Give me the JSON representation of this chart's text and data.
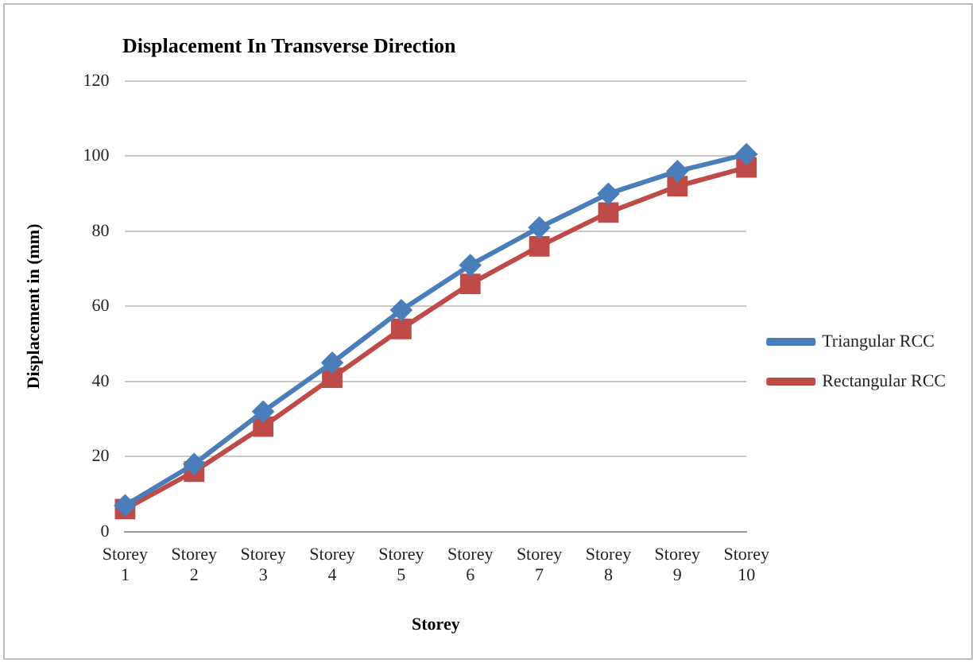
{
  "chart_data": {
    "type": "line",
    "title": "Displacement In Transverse Direction",
    "xlabel": "Storey",
    "ylabel": "Displacement in (mm)",
    "categories": [
      "Storey 1",
      "Storey 2",
      "Storey 3",
      "Storey 4",
      "Storey 5",
      "Storey 6",
      "Storey 7",
      "Storey 8",
      "Storey 9",
      "Storey 10"
    ],
    "series": [
      {
        "name": "Triangular RCC",
        "color": "#4a7ebb",
        "marker": "diamond",
        "values": [
          7,
          18,
          32,
          45,
          59,
          71,
          81,
          90,
          96,
          100.5
        ]
      },
      {
        "name": "Rectangular RCC",
        "color": "#be4b48",
        "marker": "square",
        "values": [
          6,
          16,
          28,
          41,
          54,
          66,
          76,
          85,
          92,
          97
        ]
      }
    ],
    "ylim": [
      0,
      120
    ],
    "yticks": [
      0,
      20,
      40,
      60,
      80,
      100,
      120
    ],
    "grid": "y",
    "legend": "right",
    "line_style": "solid"
  }
}
